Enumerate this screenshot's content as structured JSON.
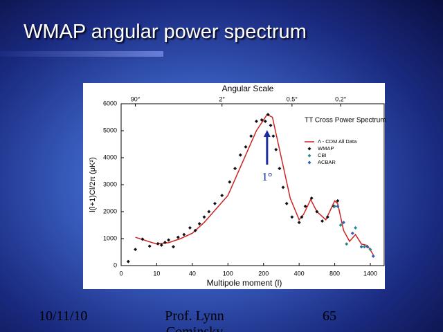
{
  "slide": {
    "title": "WMAP angular power spectrum",
    "footer": {
      "date": "10/11/10",
      "author": "Prof. Lynn Cominsky",
      "page": "65"
    }
  },
  "chart_data": {
    "type": "scatter",
    "title": "Angular Scale",
    "legend_title": "TT Cross Power Spectrum",
    "x_label": "Multipole moment (l)",
    "y_label": "l(l+1)Cl/2π (μK²)",
    "annotation": "1°",
    "annotation_x": 220,
    "xlim": [
      0,
      1500
    ],
    "xticks": [
      0,
      10,
      40,
      100,
      200,
      400,
      800,
      1400
    ],
    "top_ticks": [
      {
        "value": 4,
        "label": "90°"
      },
      {
        "value": 90,
        "label": "2°"
      },
      {
        "value": 360,
        "label": "0.5°"
      },
      {
        "value": 900,
        "label": "0.2°"
      }
    ],
    "ylim": [
      0,
      6000
    ],
    "yticks": [
      0,
      1000,
      2000,
      3000,
      4000,
      5000,
      6000
    ],
    "series": [
      {
        "name": "Λ - CDM All Data",
        "color": "#cc2222",
        "style": "line",
        "x": [
          4,
          10,
          20,
          30,
          40,
          60,
          80,
          100,
          140,
          180,
          220,
          250,
          300,
          350,
          400,
          450,
          530,
          600,
          700,
          800,
          850,
          950,
          1050,
          1150,
          1250,
          1350,
          1450
        ],
        "values": [
          1050,
          800,
          850,
          1000,
          1200,
          1600,
          2100,
          2600,
          3800,
          5000,
          5600,
          5500,
          4000,
          2500,
          1700,
          1900,
          2450,
          2000,
          1700,
          2400,
          2300,
          1300,
          900,
          1150,
          800,
          750,
          400
        ]
      },
      {
        "name": "WMAP",
        "color": "#111111",
        "style": "marker",
        "x": [
          2,
          4,
          6,
          8,
          11,
          14,
          17,
          20,
          24,
          28,
          33,
          38,
          45,
          52,
          60,
          68,
          78,
          90,
          105,
          120,
          135,
          150,
          165,
          180,
          195,
          210,
          225,
          240,
          255,
          270,
          290,
          310,
          330,
          360,
          400,
          430,
          470,
          540,
          600,
          660,
          720,
          790,
          850
        ],
        "values": [
          150,
          600,
          980,
          720,
          810,
          760,
          860,
          950,
          700,
          1050,
          1150,
          1400,
          1300,
          1550,
          1800,
          2000,
          2300,
          2600,
          3100,
          3600,
          4100,
          4400,
          4800,
          5350,
          5400,
          5350,
          5600,
          5200,
          4800,
          4300,
          3600,
          2900,
          2300,
          1800,
          1600,
          1800,
          2200,
          2500,
          2000,
          1650,
          1800,
          2200,
          2400
        ]
      },
      {
        "name": "CBI",
        "color": "#2a8a8a",
        "style": "marker",
        "x": [
          800,
          900,
          1000,
          1150,
          1300,
          1400
        ],
        "values": [
          2200,
          1500,
          800,
          1400,
          700,
          600
        ]
      },
      {
        "name": "ACBAR",
        "color": "#3060b0",
        "style": "marker",
        "x": [
          850,
          950,
          1100,
          1250,
          1350,
          1450
        ],
        "values": [
          2200,
          1600,
          1200,
          700,
          700,
          350
        ]
      }
    ]
  }
}
